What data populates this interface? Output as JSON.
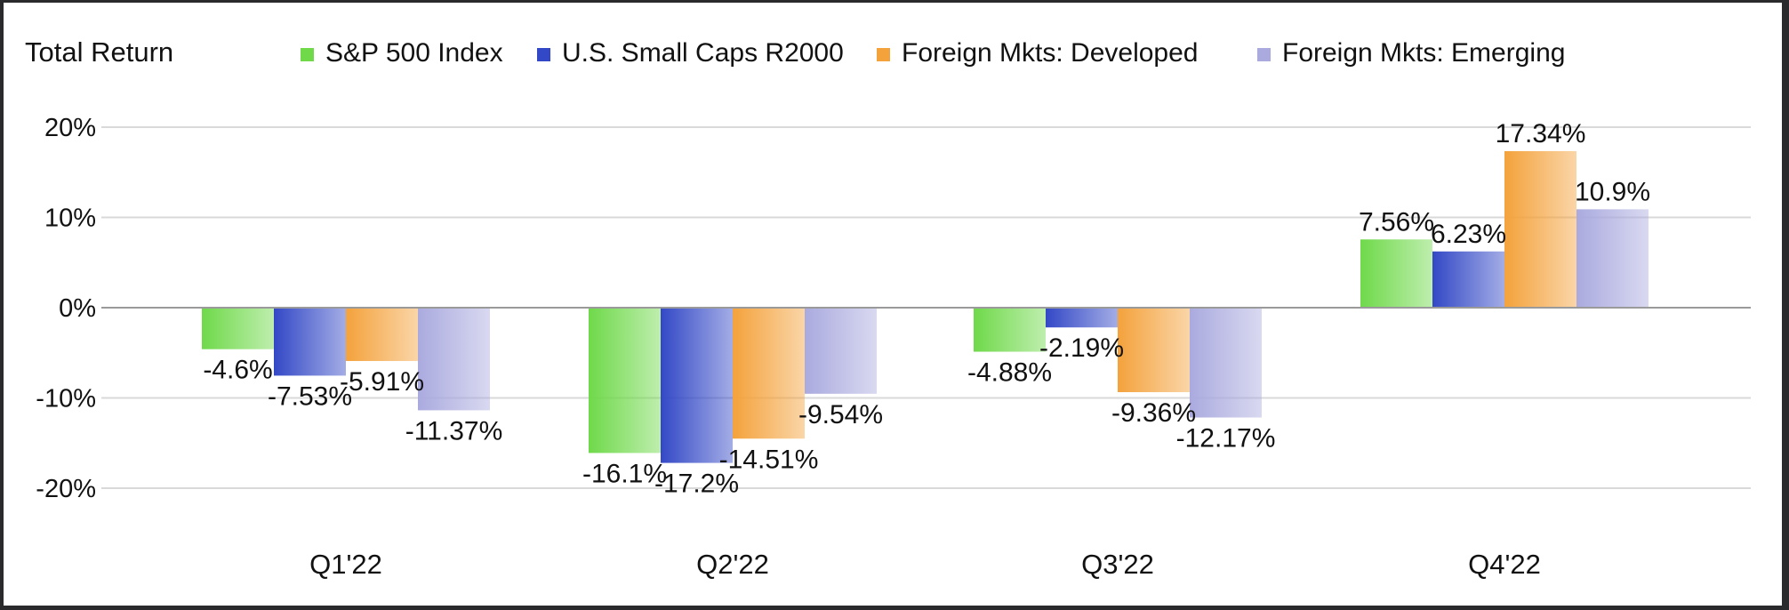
{
  "chart_data": {
    "type": "bar",
    "title": "Total Return",
    "categories": [
      "Q1'22",
      "Q2'22",
      "Q3'22",
      "Q4'22"
    ],
    "series": [
      {
        "name": "S&P 500 Index",
        "color": "#6fd94a",
        "values": [
          -4.6,
          -16.1,
          -4.88,
          7.56
        ],
        "labels": [
          "-4.6%",
          "-16.1%",
          "-4.88%",
          "7.56%"
        ]
      },
      {
        "name": "U.S. Small Caps R2000",
        "color": "#3348c6",
        "values": [
          -7.53,
          -17.2,
          -2.19,
          6.23
        ],
        "labels": [
          "-7.53%",
          "-17.2%",
          "-2.19%",
          "6.23%"
        ]
      },
      {
        "name": "Foreign Mkts: Developed",
        "color": "#f4a23c",
        "values": [
          -5.91,
          -14.51,
          -9.36,
          17.34
        ],
        "labels": [
          "-5.91%",
          "-14.51%",
          "-9.36%",
          "17.34%"
        ]
      },
      {
        "name": "Foreign Mkts: Emerging",
        "color": "#aaaadf",
        "values": [
          -11.37,
          -9.54,
          -12.17,
          10.9
        ],
        "labels": [
          "-11.37%",
          "-9.54%",
          "-12.17%",
          "10.9%"
        ]
      }
    ],
    "yticks": [
      {
        "value": 20,
        "label": "20%"
      },
      {
        "value": 10,
        "label": "10%"
      },
      {
        "value": 0,
        "label": "0%"
      },
      {
        "value": -10,
        "label": "-10%"
      },
      {
        "value": -20,
        "label": "-20%"
      }
    ],
    "ylim": [
      -20,
      20
    ],
    "grid": true,
    "legend_position": "top"
  }
}
